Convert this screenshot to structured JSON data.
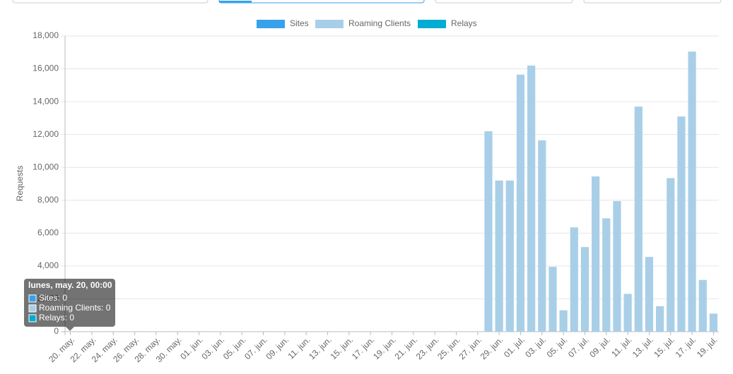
{
  "chart_data": {
    "type": "bar",
    "stacked": true,
    "y_label": "Requests",
    "categories": [
      "20. may.",
      null,
      "22. may.",
      null,
      "24. may.",
      null,
      "26. may.",
      null,
      "28. may.",
      null,
      "30. may.",
      null,
      "01. jun.",
      null,
      "03. jun.",
      null,
      "05. jun.",
      null,
      "07. jun.",
      null,
      "09. jun.",
      null,
      "11. jun.",
      null,
      "13. jun.",
      null,
      "15. jun.",
      null,
      "17. jun.",
      null,
      "19. jun.",
      null,
      "21. jun.",
      null,
      "23. jun.",
      null,
      "25. jun.",
      null,
      "27. jun.",
      null,
      "29. jun.",
      null,
      "01. jul.",
      null,
      "03. jul.",
      null,
      "05. jul.",
      null,
      "07. jul.",
      null,
      "09. jul.",
      null,
      "11. jul.",
      null,
      "13. jul.",
      null,
      "15. jul.",
      null,
      "17. jul.",
      null,
      "19. jul."
    ],
    "series": [
      {
        "name": "Sites",
        "color": "#36a2eb",
        "values": [
          0,
          0,
          0,
          0,
          0,
          0,
          0,
          0,
          0,
          0,
          0,
          0,
          0,
          0,
          0,
          0,
          0,
          0,
          0,
          0,
          0,
          0,
          0,
          0,
          0,
          0,
          0,
          0,
          0,
          0,
          0,
          0,
          0,
          0,
          0,
          0,
          0,
          0,
          0,
          0,
          0,
          0,
          0,
          0,
          0,
          0,
          0,
          0,
          0,
          0,
          0,
          0,
          0,
          0,
          0,
          0,
          0,
          0,
          0,
          0,
          0
        ]
      },
      {
        "name": "Roaming Clients",
        "color": "#a9cfe8",
        "values": [
          0,
          0,
          0,
          0,
          0,
          0,
          0,
          0,
          0,
          0,
          0,
          0,
          0,
          0,
          0,
          0,
          0,
          0,
          0,
          0,
          0,
          0,
          0,
          0,
          0,
          0,
          0,
          0,
          0,
          0,
          0,
          0,
          0,
          0,
          0,
          0,
          0,
          0,
          0,
          12200,
          9200,
          9200,
          15650,
          16200,
          11650,
          3950,
          1300,
          6350,
          5150,
          9450,
          6900,
          7950,
          2300,
          13700,
          4550,
          1550,
          9350,
          13100,
          17050,
          3150,
          1100
        ]
      },
      {
        "name": "Relays",
        "color": "#00acd4",
        "values": [
          0,
          0,
          0,
          0,
          0,
          0,
          0,
          0,
          0,
          0,
          0,
          0,
          0,
          0,
          0,
          0,
          0,
          0,
          0,
          0,
          0,
          0,
          0,
          0,
          0,
          0,
          0,
          0,
          0,
          0,
          0,
          0,
          0,
          0,
          0,
          0,
          0,
          0,
          0,
          0,
          0,
          0,
          0,
          0,
          0,
          0,
          0,
          0,
          0,
          0,
          0,
          0,
          0,
          0,
          0,
          0,
          0,
          0,
          0,
          0,
          0
        ]
      }
    ],
    "ylim": [
      0,
      18000
    ],
    "yticks": [
      0,
      {
        "value": 2000,
        "label": "2,000"
      },
      {
        "value": 4000,
        "label": "4,000"
      },
      {
        "value": 6000,
        "label": "6,000"
      },
      {
        "value": 8000,
        "label": "8,000"
      },
      {
        "value": 10000,
        "label": "10,000"
      },
      {
        "value": 12000,
        "label": "12,000"
      },
      {
        "value": 14000,
        "label": "14,000"
      },
      {
        "value": 16000,
        "label": "16,000"
      },
      {
        "value": 18000,
        "label": "18,000"
      }
    ],
    "grid": true,
    "legend": "top",
    "tooltip": {
      "title": "lunes, may. 20, 00:00",
      "items": [
        "Sites: 0",
        "Roaming Clients: 0",
        "Relays: 0"
      ]
    }
  }
}
